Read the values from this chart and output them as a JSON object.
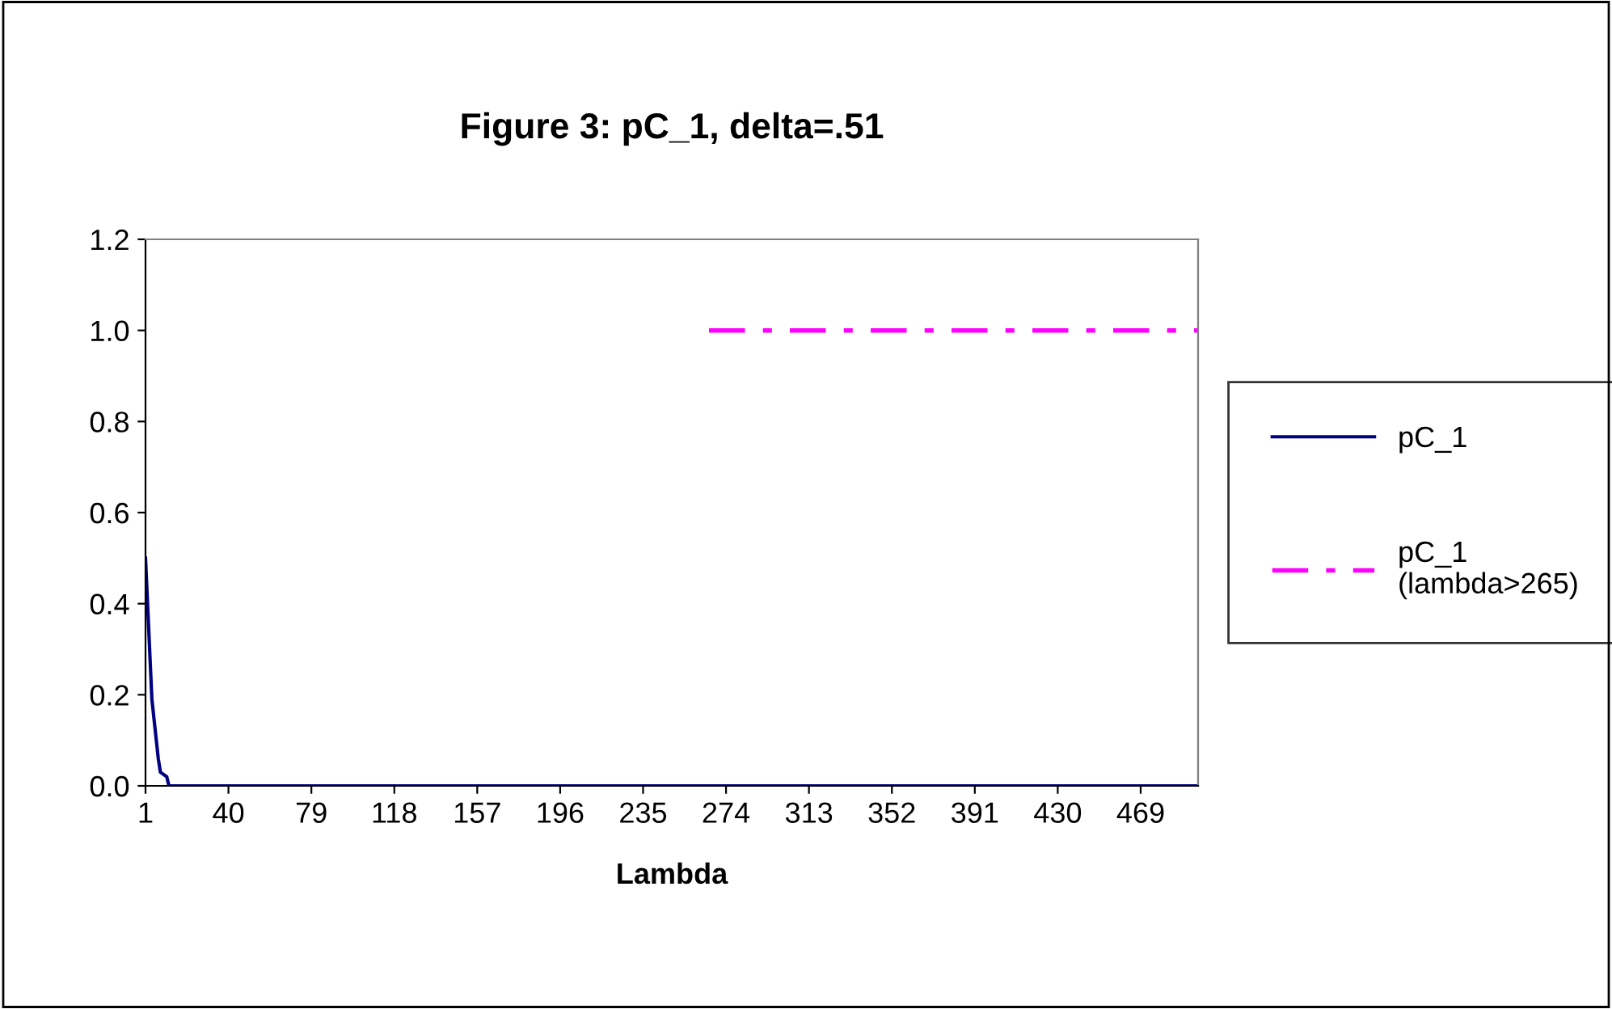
{
  "chart_data": {
    "type": "line",
    "title": "Figure 3: pC_1, delta=.51",
    "xlabel": "Lambda",
    "series": [
      {
        "name": "pC_1",
        "color": "#000080",
        "line_style": "solid",
        "x": [
          1,
          4,
          7,
          8,
          11,
          12,
          100,
          200,
          300,
          400,
          496
        ],
        "values": [
          0.5,
          0.19,
          0.06,
          0.03,
          0.02,
          0,
          0,
          0,
          0,
          0,
          0
        ]
      },
      {
        "name": "pC_1\n(lambda>265)",
        "color": "#ff00ff",
        "line_style": "dashdot",
        "x": [
          266,
          496
        ],
        "values": [
          1.0,
          1.0
        ]
      }
    ],
    "xlim": [
      1,
      496
    ],
    "xticks": [
      1,
      40,
      79,
      118,
      157,
      196,
      235,
      274,
      313,
      352,
      391,
      430,
      469
    ],
    "ylim": [
      0,
      1.2
    ],
    "yticks": [
      {
        "value": 0,
        "label": "0.0"
      },
      {
        "value": 0.2,
        "label": "0.2"
      },
      {
        "value": 0.4,
        "label": "0.4"
      },
      {
        "value": 0.6,
        "label": "0.6"
      },
      {
        "value": 0.8,
        "label": "0.8"
      },
      {
        "value": 1.0,
        "label": "1.0"
      },
      {
        "value": 1.2,
        "label": "1.2"
      }
    ],
    "grid": false,
    "legend": "right",
    "marker": "none"
  }
}
